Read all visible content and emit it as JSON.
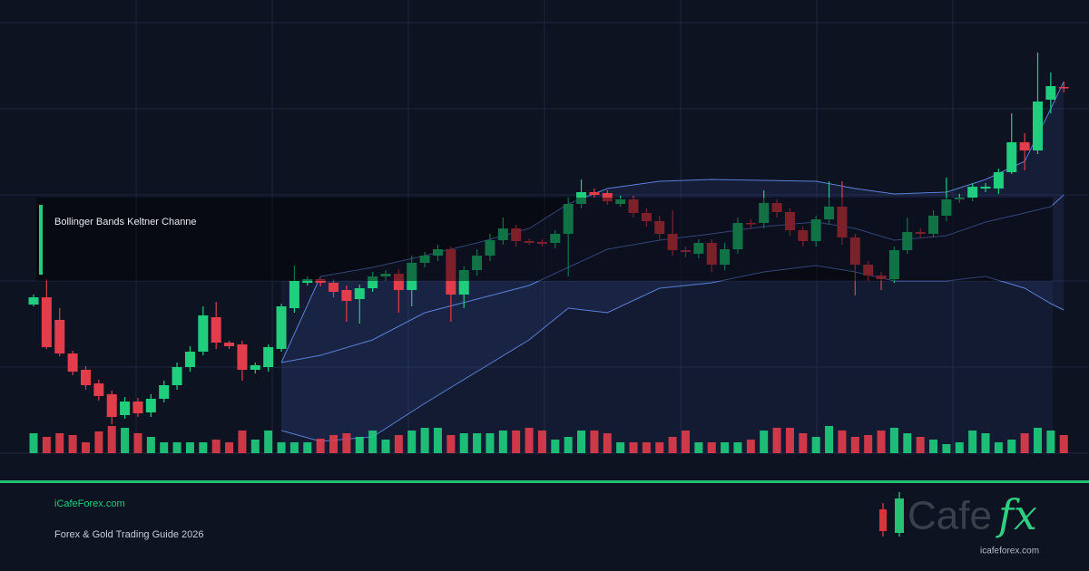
{
  "chart_data": {
    "type": "candlestick",
    "title": "Bollinger Bands Keltner Channe",
    "ylim": [
      0,
      480
    ],
    "volume_ylim": [
      0,
      60
    ],
    "up_color": "#20cf7e",
    "down_color": "#e23d4b",
    "band_color": "#5b7fd6",
    "open": [
      164,
      172,
      147,
      110,
      92,
      77,
      65,
      42,
      57,
      45,
      60,
      75,
      95,
      112,
      150,
      122,
      120,
      92,
      95,
      115,
      160,
      188,
      192,
      188,
      180,
      170,
      182,
      195,
      198,
      180,
      210,
      218,
      225,
      175,
      202,
      218,
      235,
      248,
      234,
      233,
      232,
      242,
      275,
      288,
      287,
      275,
      280,
      265,
      256,
      242,
      224,
      220,
      232,
      208,
      225,
      254,
      254,
      276,
      266,
      246,
      234,
      258,
      272,
      238,
      208,
      196,
      192,
      224,
      244,
      242,
      262,
      280,
      282,
      292,
      292,
      310,
      343,
      334,
      390,
      404
    ],
    "high": [
      175,
      192,
      160,
      113,
      96,
      81,
      69,
      62,
      61,
      65,
      80,
      100,
      118,
      162,
      167,
      124,
      124,
      100,
      120,
      165,
      207,
      195,
      194,
      192,
      185,
      186,
      200,
      202,
      203,
      218,
      222,
      230,
      228,
      206,
      225,
      242,
      260,
      252,
      237,
      236,
      246,
      282,
      302,
      292,
      290,
      284,
      284,
      270,
      262,
      268,
      228,
      236,
      236,
      232,
      260,
      258,
      290,
      280,
      270,
      250,
      262,
      300,
      300,
      242,
      212,
      200,
      228,
      260,
      248,
      268,
      304,
      286,
      298,
      298,
      314,
      375,
      353,
      442,
      420,
      410
    ],
    "low": [
      162,
      115,
      107,
      86,
      70,
      58,
      32,
      38,
      40,
      40,
      56,
      70,
      90,
      108,
      115,
      115,
      80,
      88,
      90,
      112,
      155,
      185,
      184,
      172,
      145,
      143,
      178,
      190,
      155,
      162,
      205,
      212,
      145,
      160,
      196,
      212,
      230,
      228,
      230,
      228,
      226,
      195,
      270,
      282,
      274,
      272,
      260,
      250,
      236,
      218,
      216,
      215,
      200,
      202,
      220,
      248,
      248,
      260,
      240,
      228,
      228,
      252,
      230,
      174,
      190,
      180,
      188,
      220,
      238,
      238,
      256,
      276,
      278,
      288,
      286,
      308,
      312,
      330,
      375,
      398
    ],
    "close": [
      172,
      117,
      110,
      90,
      75,
      63,
      40,
      57,
      44,
      60,
      75,
      95,
      112,
      152,
      122,
      118,
      92,
      97,
      117,
      162,
      190,
      192,
      188,
      178,
      168,
      182,
      195,
      198,
      180,
      210,
      218,
      225,
      175,
      202,
      218,
      235,
      248,
      234,
      232,
      231,
      242,
      275,
      288,
      285,
      278,
      280,
      265,
      256,
      242,
      224,
      222,
      232,
      208,
      225,
      254,
      253,
      276,
      266,
      246,
      234,
      258,
      272,
      238,
      208,
      196,
      192,
      224,
      244,
      242,
      262,
      280,
      282,
      294,
      294,
      310,
      343,
      334,
      388,
      405,
      403
    ],
    "volume": [
      22,
      18,
      22,
      20,
      12,
      24,
      30,
      28,
      22,
      18,
      12,
      12,
      12,
      12,
      15,
      12,
      25,
      15,
      25,
      12,
      12,
      12,
      16,
      20,
      22,
      18,
      25,
      15,
      20,
      25,
      28,
      28,
      20,
      22,
      22,
      22,
      25,
      25,
      28,
      25,
      15,
      18,
      25,
      25,
      22,
      12,
      12,
      12,
      12,
      18,
      25,
      12,
      12,
      12,
      12,
      15,
      25,
      28,
      28,
      22,
      18,
      30,
      25,
      18,
      20,
      25,
      28,
      22,
      18,
      15,
      10,
      12,
      25,
      22,
      12,
      15,
      22,
      28,
      25,
      20
    ],
    "bands": {
      "x": [
        19,
        22,
        26,
        30,
        34,
        38,
        41,
        44,
        48,
        52,
        56,
        60,
        63,
        66,
        70,
        73,
        76,
        78,
        79
      ],
      "upper": [
        100,
        195,
        205,
        218,
        232,
        248,
        275,
        292,
        300,
        302,
        301,
        300,
        292,
        286,
        288,
        302,
        322,
        380,
        410
      ],
      "middle": [
        100,
        108,
        125,
        155,
        170,
        185,
        205,
        225,
        235,
        242,
        250,
        255,
        248,
        235,
        240,
        255,
        265,
        272,
        285
      ],
      "lower": [
        25,
        13,
        18,
        55,
        90,
        125,
        160,
        155,
        182,
        188,
        200,
        207,
        200,
        190,
        190,
        195,
        182,
        165,
        158
      ]
    }
  },
  "footer": {
    "site": "iCafeForex.com",
    "subtitle": "Forex & Gold Trading Guide 2026",
    "logo_main": "Cafe",
    "logo_accent": "fx",
    "logo_url": "icafeforex.com"
  }
}
